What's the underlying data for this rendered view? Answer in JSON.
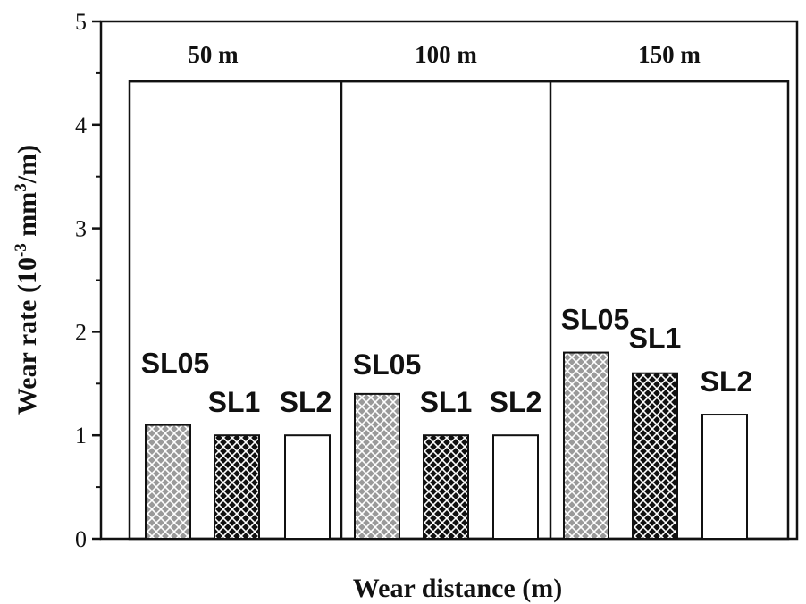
{
  "chart_data": {
    "type": "bar",
    "title": "",
    "xlabel": "Wear distance (m)",
    "ylabel": {
      "prefix": "Wear rate (10",
      "exponent1": "-3",
      "middle": " mm",
      "exponent2": "3",
      "suffix": "/m)"
    },
    "ylim": [
      0,
      5
    ],
    "yticks": [
      "0",
      "1",
      "2",
      "3",
      "4",
      "5"
    ],
    "groups": [
      {
        "label": "50 m",
        "bars": [
          {
            "name": "SL05",
            "value": 1.1,
            "pattern": "grey-check"
          },
          {
            "name": "SL1",
            "value": 1.0,
            "pattern": "black-check"
          },
          {
            "name": "SL2",
            "value": 1.0,
            "pattern": "white"
          }
        ]
      },
      {
        "label": "100 m",
        "bars": [
          {
            "name": "SL05",
            "value": 1.4,
            "pattern": "grey-check"
          },
          {
            "name": "SL1",
            "value": 1.0,
            "pattern": "black-check"
          },
          {
            "name": "SL2",
            "value": 1.0,
            "pattern": "white"
          }
        ]
      },
      {
        "label": "150 m",
        "bars": [
          {
            "name": "SL05",
            "value": 1.8,
            "pattern": "grey-check"
          },
          {
            "name": "SL1",
            "value": 1.6,
            "pattern": "black-check"
          },
          {
            "name": "SL2",
            "value": 1.2,
            "pattern": "white"
          }
        ]
      }
    ],
    "panel_top_value": 4.42,
    "grid": false,
    "colors": {
      "axis": "#111111",
      "grey_check": "#9a9a9a",
      "black_check": "#111111",
      "white": "#ffffff"
    }
  }
}
